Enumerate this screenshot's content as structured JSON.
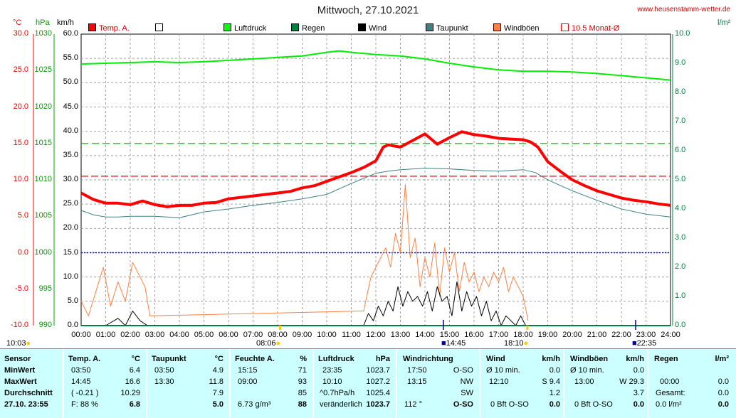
{
  "header": {
    "title": "Mittwoch, 27.10.2021",
    "site": "www.heusenstamm-wetter.de",
    "units": {
      "temp": "°C",
      "pressure": "hPa",
      "wind": "km/h",
      "rain": "l/m²"
    }
  },
  "legend": [
    {
      "label": "Temp. A.",
      "color": "#ff0000"
    },
    {
      "label": "",
      "color": "#ffffff"
    },
    {
      "label": "Luftdruck",
      "color": "#00ff00"
    },
    {
      "label": "Regen",
      "color": "#008040"
    },
    {
      "label": "Wind",
      "color": "#000000"
    },
    {
      "label": "Taupunkt",
      "color": "#408080"
    },
    {
      "label": "Windböen",
      "color": "#ff8040"
    },
    {
      "label": "10.5 Monat-Ø",
      "color": "#ff0000"
    }
  ],
  "axes": {
    "temp": [
      "30.0",
      "25.0",
      "20.0",
      "15.0",
      "10.0",
      "5.0",
      "0.0",
      "-5.0",
      "-10.0"
    ],
    "pressure": [
      "1030",
      "1025",
      "1020",
      "1015",
      "1010",
      "1005",
      "1000",
      "995",
      "990"
    ],
    "wind": [
      "60.0",
      "55.0",
      "50.0",
      "45.0",
      "40.0",
      "35.0",
      "30.0",
      "25.0",
      "20.0",
      "15.0",
      "10.0",
      "5.0",
      "0.0"
    ],
    "rain": [
      "10.0",
      "9.0",
      "8.0",
      "7.0",
      "6.0",
      "5.0",
      "4.0",
      "3.0",
      "2.0",
      "1.0",
      "0.0"
    ],
    "hours": [
      "00:00",
      "01:00",
      "02:00",
      "03:00",
      "04:00",
      "05:00",
      "06:00",
      "07:00",
      "08:00",
      "09:00",
      "10:00",
      "11:00",
      "12:00",
      "13:00",
      "14:00",
      "15:00",
      "16:00",
      "17:00",
      "18:00",
      "19:00",
      "20:00",
      "21:00",
      "22:00",
      "23:00",
      "24:00"
    ]
  },
  "events": {
    "sunrise": "08:06",
    "sunset": "18:10",
    "left_time": "10:03",
    "temp_max_time": "14:45",
    "end_time": "22:35"
  },
  "chart_data": {
    "type": "line",
    "x_unit": "hour",
    "ylim_temp": [
      -10,
      30
    ],
    "ylim_pressure": [
      990,
      1030
    ],
    "ylim_wind": [
      0,
      60
    ],
    "ylim_rain": [
      0,
      10
    ],
    "month_avg_temp": 10.5,
    "series": [
      {
        "name": "Temp. A.",
        "axis": "temp",
        "x": [
          0,
          0.5,
          1,
          1.5,
          2,
          2.5,
          3,
          3.5,
          4,
          4.5,
          5,
          5.5,
          6,
          7,
          8,
          8.5,
          9,
          9.5,
          10,
          10.5,
          11,
          11.5,
          12,
          12.3,
          12.5,
          13,
          13.5,
          14,
          14.5,
          15,
          15.5,
          16,
          16.5,
          17,
          17.5,
          18,
          18.3,
          18.6,
          19,
          19.5,
          20,
          20.5,
          21,
          21.5,
          22,
          22.5,
          23,
          23.5,
          24
        ],
        "y": [
          8.2,
          7.3,
          6.8,
          6.8,
          6.6,
          7.1,
          6.6,
          6.3,
          6.5,
          6.5,
          6.8,
          6.9,
          7.4,
          7.8,
          8.2,
          8.4,
          8.9,
          9.2,
          9.8,
          10.4,
          11.0,
          11.7,
          12.6,
          14.5,
          14.8,
          14.5,
          15.4,
          16.3,
          14.9,
          15.8,
          16.6,
          16.2,
          16.0,
          15.7,
          15.6,
          15.5,
          15.2,
          14.5,
          12.5,
          11.2,
          10.0,
          9.2,
          8.5,
          8.0,
          7.5,
          7.2,
          7.0,
          6.7,
          6.5
        ]
      },
      {
        "name": "Taupunkt",
        "axis": "temp",
        "x": [
          0,
          0.5,
          1,
          1.5,
          2,
          3,
          4,
          5,
          6,
          7,
          8,
          9,
          10,
          11,
          12,
          12.5,
          13,
          14,
          15,
          16,
          17,
          18,
          18.5,
          19,
          20,
          21,
          22,
          23,
          24
        ],
        "y": [
          5.8,
          5.2,
          4.9,
          4.9,
          5.0,
          5.0,
          4.8,
          5.6,
          6.0,
          6.5,
          6.9,
          7.4,
          8.0,
          9.5,
          10.9,
          11.2,
          11.4,
          11.6,
          11.5,
          11.3,
          11.2,
          11.4,
          11.0,
          10.0,
          8.5,
          7.2,
          6.0,
          5.3,
          4.9
        ]
      },
      {
        "name": "Luftdruck",
        "axis": "pressure",
        "x": [
          0,
          1,
          2,
          3,
          4,
          5,
          6,
          7,
          8,
          9,
          10,
          10.5,
          11,
          12,
          13,
          14,
          15,
          16,
          17,
          18,
          19,
          20,
          21,
          22,
          23,
          24
        ],
        "y": [
          1025.9,
          1026.0,
          1026.1,
          1026.2,
          1026.1,
          1026.2,
          1026.4,
          1026.6,
          1026.8,
          1027.0,
          1027.5,
          1027.7,
          1027.5,
          1027.2,
          1027.0,
          1026.6,
          1026.0,
          1025.5,
          1025.1,
          1024.9,
          1024.9,
          1024.8,
          1024.6,
          1024.3,
          1024.0,
          1023.7
        ]
      },
      {
        "name": "Wind",
        "axis": "wind",
        "x": [
          0,
          1,
          1.5,
          1.8,
          2.1,
          2.4,
          2.7,
          3,
          11.5,
          11.7,
          11.9,
          12.1,
          12.3,
          12.5,
          12.7,
          12.9,
          13.1,
          13.3,
          13.5,
          13.7,
          13.9,
          14.1,
          14.3,
          14.5,
          14.7,
          14.9,
          15.1,
          15.3,
          15.5,
          15.7,
          15.9,
          16.1,
          16.3,
          16.5,
          16.7,
          16.9,
          17.1,
          17.3,
          17.5,
          17.7,
          17.9,
          18.1,
          18.3
        ],
        "y": [
          0,
          0,
          1.5,
          0,
          3,
          1,
          0,
          0,
          0,
          2.5,
          1,
          4,
          2,
          5,
          3,
          8,
          4,
          7,
          5,
          6,
          4,
          7,
          3,
          8,
          5,
          6,
          2,
          9,
          3,
          7,
          4,
          6,
          2,
          5,
          1,
          3,
          0,
          2,
          1,
          0,
          2,
          0,
          0
        ]
      },
      {
        "name": "Windböen",
        "axis": "wind",
        "x": [
          0,
          0.3,
          0.6,
          0.9,
          1.2,
          1.5,
          1.8,
          2.1,
          2.4,
          2.6,
          2.8,
          11.5,
          11.8,
          12,
          12.2,
          12.4,
          12.6,
          12.8,
          13,
          13.2,
          13.4,
          13.6,
          13.8,
          14,
          14.2,
          14.4,
          14.6,
          14.8,
          15,
          15.2,
          15.4,
          15.6,
          15.8,
          16,
          16.2,
          16.4,
          16.6,
          16.8,
          17,
          17.2,
          17.4,
          17.6,
          17.8,
          18,
          18.2
        ],
        "y": [
          5,
          2,
          7,
          12,
          4,
          9,
          5,
          13,
          10,
          8,
          2,
          3,
          10,
          12,
          14,
          16,
          12,
          19,
          15,
          29,
          14,
          18,
          8,
          14,
          10,
          17,
          6,
          16,
          11,
          15,
          7,
          13,
          9,
          11,
          7,
          10,
          8,
          11,
          9,
          12,
          7,
          10,
          8,
          6,
          1
        ]
      }
    ],
    "rain_total": 0.0
  },
  "table": {
    "row_labels": [
      "Sensor",
      "MinWert",
      "MaxWert",
      "Durchschnitt",
      "27.10. 23:55"
    ],
    "temp": {
      "title": "Temp. A.",
      "unit": "°C",
      "min_time": "03:50",
      "min": "6.4",
      "max_time": "14:45",
      "max": "16.6",
      "avg_note": "( -0.21 )",
      "avg": "10.29",
      "cur_note": "F: 88 %",
      "cur": "6.8"
    },
    "dew": {
      "title": "Taupunkt",
      "unit": "°C",
      "min_time": "03:50",
      "min": "4.9",
      "max_time": "13:30",
      "max": "11.8",
      "avg": "7.9",
      "cur": "5.0"
    },
    "hum": {
      "title": "Feuchte A.",
      "unit": "%",
      "min_time": "15:15",
      "min": "71",
      "max_time": "09:00",
      "max": "93",
      "avg": "85",
      "cur_note": "6.73 g/m³",
      "cur": "88"
    },
    "press": {
      "title": "Luftdruck",
      "unit": "hPa",
      "min_time": "23:35",
      "min": "1023.7",
      "max_time": "10:10",
      "max": "1027.2",
      "avg_note": "^0.7hPa/h",
      "avg": "1025.4",
      "cur_note": "veränderlich",
      "cur": "1023.7"
    },
    "dir": {
      "title": "Windrichtung",
      "min_time": "17:50",
      "min": "O-SO",
      "max_time": "13:15",
      "max": "NW",
      "avg": "SW",
      "cur_note": "112 °",
      "cur": "O-SO"
    },
    "wind": {
      "title": "Wind",
      "unit": "km/h",
      "min_time": "Ø 10 min.",
      "min": "0.0",
      "max_time": "12:10",
      "max": "S 9.4",
      "avg": "1.2",
      "cur_note": "0 Bft O-SO",
      "cur": "0.0"
    },
    "gust": {
      "title": "Windböen",
      "unit": "km/h",
      "min_time": "Ø 10 min.",
      "min": "0.0",
      "max_time": "13:00",
      "max": "W 29.3",
      "avg": "3.7",
      "cur_note": "0 Bft O-SO",
      "cur": "0.0"
    },
    "rain": {
      "title": "Regen",
      "unit": "l/m²",
      "min": "",
      "max_time": "00:00",
      "max": "0.0",
      "avg_note": "Gesamt:",
      "avg": "0.0",
      "cur_note": "0.0 l/m²",
      "cur": "0.0"
    }
  }
}
